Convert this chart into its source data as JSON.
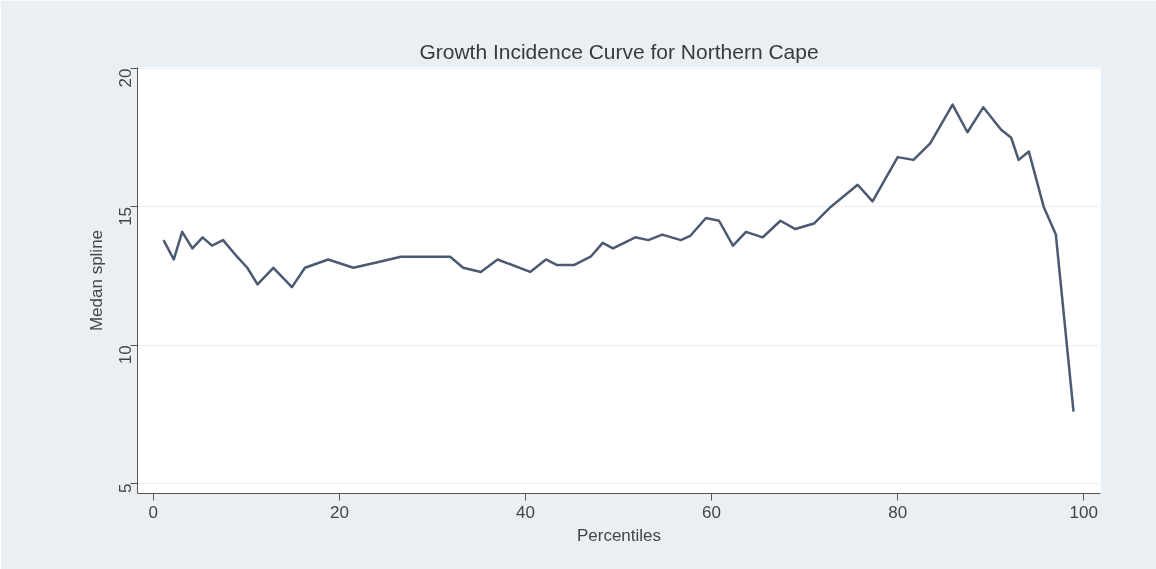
{
  "chart_data": {
    "type": "line",
    "title": "Growth Incidence Curve for Northern Cape",
    "xlabel": "Percentiles",
    "ylabel": "Medan spline",
    "xlim": [
      -1.7,
      101.8
    ],
    "ylim": [
      4.64,
      20.04
    ],
    "xticks": [
      0,
      20,
      40,
      60,
      80,
      100
    ],
    "yticks": [
      5,
      10,
      15,
      20
    ],
    "grid": "y",
    "series": [
      {
        "color": "#4b5a72",
        "x": [
          1.1,
          2.2,
          3.1,
          4.2,
          5.3,
          6.3,
          7.5,
          9.0,
          10.1,
          11.2,
          12.9,
          14.9,
          16.3,
          18.8,
          21.5,
          24.1,
          26.6,
          29.8,
          31.9,
          33.3,
          35.2,
          37.0,
          40.5,
          42.2,
          43.4,
          45.2,
          47.0,
          48.3,
          49.4,
          51.8,
          53.2,
          54.7,
          56.7,
          57.7,
          59.4,
          60.8,
          62.3,
          63.7,
          65.5,
          67.4,
          69.0,
          71.0,
          72.8,
          75.7,
          77.3,
          80.0,
          81.7,
          83.5,
          85.9,
          87.5,
          89.2,
          91.1,
          92.2,
          93.0,
          94.1,
          95.7,
          97.0,
          98.9
        ],
        "values": [
          13.8,
          13.1,
          14.1,
          13.5,
          13.9,
          13.6,
          13.8,
          13.2,
          12.8,
          12.2,
          12.8,
          12.1,
          12.8,
          13.1,
          12.8,
          13.0,
          13.2,
          13.2,
          13.2,
          12.8,
          12.65,
          13.1,
          12.65,
          13.1,
          12.9,
          12.9,
          13.2,
          13.7,
          13.5,
          13.9,
          13.8,
          14.0,
          13.8,
          13.95,
          14.6,
          14.5,
          13.6,
          14.1,
          13.9,
          14.5,
          14.2,
          14.4,
          15.0,
          15.8,
          15.2,
          16.8,
          16.7,
          17.3,
          18.7,
          17.7,
          18.6,
          17.8,
          17.5,
          16.7,
          17.0,
          15.0,
          14.0,
          7.6
        ]
      }
    ]
  }
}
